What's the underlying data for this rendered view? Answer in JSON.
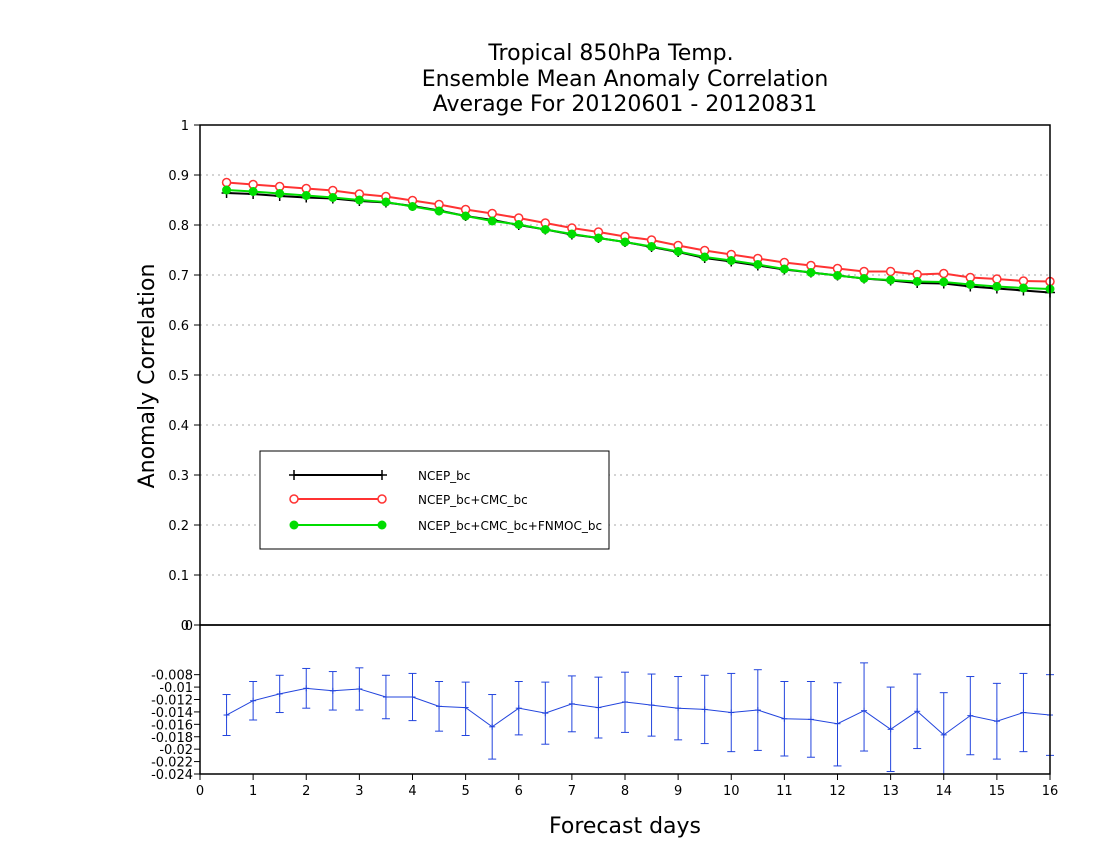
{
  "chart_data": [
    {
      "type": "line",
      "title_lines": [
        "Tropical 850hPa Temp.",
        "Ensemble Mean Anomaly Correlation",
        "Average For 20120601 - 20120831"
      ],
      "ylabel": "Anomaly Correlation",
      "ylim": [
        0,
        1
      ],
      "yticks": [
        "0",
        "0.1",
        "0.2",
        "0.3",
        "0.4",
        "0.5",
        "0.6",
        "0.7",
        "0.8",
        "0.9",
        "1"
      ],
      "grid": true,
      "legend": "lower-left",
      "x": [
        0.5,
        1,
        1.5,
        2,
        2.5,
        3,
        3.5,
        4,
        4.5,
        5,
        5.5,
        6,
        6.5,
        7,
        7.5,
        8,
        8.5,
        9,
        9.5,
        10,
        10.5,
        11,
        11.5,
        12,
        12.5,
        13,
        13.5,
        14,
        14.5,
        15,
        15.5,
        16
      ],
      "series": [
        {
          "name": "NCEP_bc",
          "color": "#000000",
          "marker": "plus",
          "values": [
            0.864,
            0.862,
            0.858,
            0.855,
            0.853,
            0.848,
            0.845,
            0.838,
            0.829,
            0.818,
            0.81,
            0.8,
            0.791,
            0.781,
            0.774,
            0.766,
            0.756,
            0.746,
            0.734,
            0.727,
            0.719,
            0.711,
            0.705,
            0.699,
            0.693,
            0.689,
            0.684,
            0.683,
            0.677,
            0.673,
            0.669,
            0.665
          ]
        },
        {
          "name": "NCEP_bc+CMC_bc",
          "color": "#ff3333",
          "marker": "open-circle",
          "values": [
            0.885,
            0.881,
            0.877,
            0.873,
            0.869,
            0.862,
            0.857,
            0.849,
            0.841,
            0.831,
            0.823,
            0.814,
            0.804,
            0.794,
            0.786,
            0.777,
            0.77,
            0.759,
            0.749,
            0.741,
            0.733,
            0.725,
            0.719,
            0.713,
            0.707,
            0.707,
            0.701,
            0.703,
            0.695,
            0.692,
            0.688,
            0.687
          ]
        },
        {
          "name": "NCEP_bc+CMC_bc+FNMOC_bc",
          "color": "#00dd00",
          "marker": "filled-circle",
          "values": [
            0.87,
            0.867,
            0.863,
            0.859,
            0.855,
            0.85,
            0.846,
            0.837,
            0.828,
            0.818,
            0.808,
            0.801,
            0.791,
            0.782,
            0.774,
            0.766,
            0.757,
            0.747,
            0.736,
            0.729,
            0.721,
            0.712,
            0.705,
            0.699,
            0.693,
            0.69,
            0.687,
            0.686,
            0.681,
            0.677,
            0.674,
            0.672
          ]
        }
      ]
    },
    {
      "type": "line",
      "xlabel": "Forecast days",
      "ylim": [
        -0.024,
        0
      ],
      "yticks": [
        "0",
        "-0.008",
        "-0.01",
        "-0.012",
        "-0.014",
        "-0.016",
        "-0.018",
        "-0.02",
        "-0.022",
        "-0.024"
      ],
      "xticks": [
        "0",
        "1",
        "2",
        "3",
        "4",
        "5",
        "6",
        "7",
        "8",
        "9",
        "10",
        "11",
        "12",
        "13",
        "14",
        "15",
        "16"
      ],
      "xlim": [
        0,
        16
      ],
      "color": "#2244dd",
      "x": [
        0.5,
        1,
        1.5,
        2,
        2.5,
        3,
        3.5,
        4,
        4.5,
        5,
        5.5,
        6,
        6.5,
        7,
        7.5,
        8,
        8.5,
        9,
        9.5,
        10,
        10.5,
        11,
        11.5,
        12,
        12.5,
        13,
        13.5,
        14,
        14.5,
        15,
        15.5,
        16
      ],
      "values": [
        -0.0145,
        -0.0122,
        -0.0111,
        -0.0102,
        -0.0106,
        -0.0103,
        -0.0116,
        -0.0116,
        -0.0131,
        -0.0133,
        -0.0164,
        -0.0134,
        -0.0142,
        -0.0127,
        -0.0133,
        -0.0124,
        -0.0129,
        -0.0134,
        -0.0136,
        -0.0141,
        -0.0137,
        -0.0151,
        -0.0152,
        -0.0159,
        -0.0138,
        -0.0168,
        -0.0139,
        -0.0177,
        -0.0146,
        -0.0155,
        -0.0141,
        -0.0145
      ],
      "err_low": [
        -0.0178,
        -0.0153,
        -0.0141,
        -0.0134,
        -0.0137,
        -0.0137,
        -0.0151,
        -0.0154,
        -0.0171,
        -0.0178,
        -0.0216,
        -0.0177,
        -0.0192,
        -0.0172,
        -0.0182,
        -0.0173,
        -0.0179,
        -0.0185,
        -0.0191,
        -0.0204,
        -0.0202,
        -0.0211,
        -0.0213,
        -0.0227,
        -0.0203,
        -0.0236,
        -0.0199,
        -0.0245,
        -0.0209,
        -0.0216,
        -0.0204,
        -0.021
      ],
      "err_high": [
        -0.0112,
        -0.0091,
        -0.0081,
        -0.007,
        -0.0075,
        -0.0069,
        -0.0081,
        -0.0078,
        -0.0091,
        -0.0092,
        -0.0112,
        -0.0091,
        -0.0092,
        -0.0082,
        -0.0084,
        -0.0076,
        -0.0079,
        -0.0083,
        -0.0081,
        -0.0078,
        -0.0072,
        -0.0091,
        -0.0091,
        -0.0093,
        -0.0061,
        -0.01,
        -0.0079,
        -0.0109,
        -0.0083,
        -0.0094,
        -0.0078,
        -0.008
      ]
    }
  ]
}
